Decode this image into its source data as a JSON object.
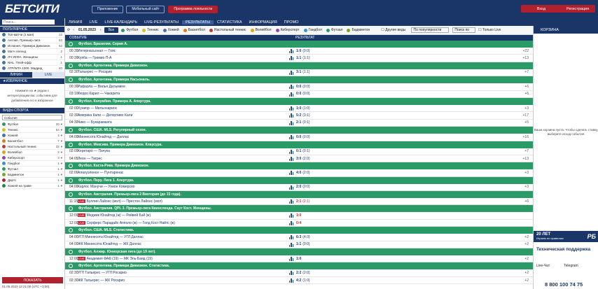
{
  "brand": "БЕТСИТИ",
  "header": {
    "app": "Приложение",
    "mobile": "Мобильный сайт",
    "loyalty": "Программа лояльности",
    "login": "Вход",
    "register": "Регистрация"
  },
  "nav": [
    "ЛИНИЯ",
    "LIVE",
    "LIVE-КАЛЕНДАРЬ",
    "LIVE-РЕЗУЛЬТАТЫ",
    "РЕЗУЛЬТАТЫ",
    "СТАТИСТИКА",
    "ИНФОРМАЦИЯ",
    "ПРОМО"
  ],
  "left": {
    "search_placeholder": "Поиск...",
    "popular_title": "ПОПУЛЯРНОЕ",
    "popular": [
      {
        "name": "Топ-матчи (1 мая)",
        "count": "22"
      },
      {
        "name": "Англия. Премьер-лига",
        "count": "63"
      },
      {
        "name": "Испания. Примера Дивизион",
        "count": "62"
      },
      {
        "name": "Матч легенд",
        "count": "2"
      },
      {
        "name": "ЛЧ УЕФА. Женщины",
        "count": "1"
      },
      {
        "name": "NHL. Плей-офф",
        "count": "1"
      },
      {
        "name": "ATP/WTA 1000. Мадрид",
        "count": "40"
      }
    ],
    "tab_line": "ЛИНИЯ",
    "tab_live": "LIVE",
    "fav_title": "ИЗБРАННОЕ",
    "fav_text": "Нажмите на ★ рядом с интересующим вас событием для добавления его в избранное",
    "sports_title": "ВИДЫ СПОРТА",
    "select": "События",
    "sports": [
      {
        "name": "Футбол",
        "count": "20",
        "color": "#2a9a66"
      },
      {
        "name": "Теннис",
        "count": "64",
        "color": "#d6c21a"
      },
      {
        "name": "Хоккей",
        "count": "4",
        "color": "#4a6fa5"
      },
      {
        "name": "Баскетбол",
        "count": "7",
        "color": "#e07a1a"
      },
      {
        "name": "Настольный теннис",
        "count": "32",
        "color": "#c0392b"
      },
      {
        "name": "Волейбол",
        "count": "2",
        "color": "#e0a21a"
      },
      {
        "name": "Киберспорт",
        "count": "3",
        "color": "#8e44ad"
      },
      {
        "name": "Гандбол",
        "count": "1",
        "color": "#3a8fd6"
      },
      {
        "name": "Футзал",
        "count": "1",
        "color": "#2a9a66"
      },
      {
        "name": "Бадминтон",
        "count": "1",
        "color": "#7aa81a"
      },
      {
        "name": "Дартс",
        "count": "1",
        "color": "#b0202e"
      },
      {
        "name": "Хоккей на траве",
        "count": "1",
        "color": "#1a8a4a"
      }
    ],
    "show_btn": "ПОКАЗАТЬ",
    "clock": "01.05.2023 12:21:00 (UTC +3:00)"
  },
  "filter": {
    "date": "01.05.2023",
    "all": "Все",
    "sports": [
      "Футбол",
      "Теннис",
      "Хоккей",
      "Баскетбол",
      "Настольный теннис",
      "Волейбол",
      "Киберспорт",
      "Гандбол",
      "Футзал",
      "Бадминтон"
    ],
    "other": "Другие виды",
    "sort": "По популярности",
    "search": "Поиск по",
    "live_only": "Только Live"
  },
  "cols": {
    "event": "СОБЫТИЕ",
    "result": "РЕЗУЛЬТАТ"
  },
  "rows": [
    {
      "g": "Футбол. Бразилия. Серия А."
    },
    {
      "t": "00:30",
      "m": "Интернасьонал — Гояс",
      "s": "1:0",
      "x": "(0:0)",
      "p": "+22"
    },
    {
      "t": "00:30",
      "m": "Куяба — Гремио П-А",
      "s": "1:1",
      "x": "(1:1)",
      "p": "+13"
    },
    {
      "g": "Футбол. Аргентина. Примера Дивизион."
    },
    {
      "t": "02:30",
      "m": "Тальерес — Росарио",
      "s": "3:1",
      "x": "(1:1)",
      "p": "+7"
    },
    {
      "g": "Футбол. Аргентина. Примера Насьональ."
    },
    {
      "t": "00:30",
      "m": "Рафаэла — Вилья Дальмине",
      "s": "0:0",
      "x": "(0:0)",
      "p": "+6"
    },
    {
      "t": "03:10",
      "m": "Ферро Карил — Чакарита",
      "s": "0:0",
      "x": "(0:0)",
      "p": "+6"
    },
    {
      "g": "Футбол. Колумбия. Примера А. Апертура."
    },
    {
      "t": "02:00",
      "m": "Хуниор — Мильонариос",
      "s": "1:0",
      "x": "(1:0)",
      "p": "+3"
    },
    {
      "t": "02:30",
      "m": "Америка Кали — Депортиво Кали",
      "s": "5:2",
      "x": "(3:1)",
      "p": "+17"
    },
    {
      "t": "04:30",
      "m": "Чико — Букараманга",
      "s": "2:1",
      "x": "(0:1)",
      "p": "+5"
    },
    {
      "g": "Футбол. США. MLS. Регулярный сезон."
    },
    {
      "t": "04:00",
      "m": "Миннесота Юнайтед — Даллас",
      "s": "0:0",
      "x": "(0:0)",
      "p": "+16"
    },
    {
      "g": "Футбол. Мексика. Примера Дивизион. Клаусура."
    },
    {
      "t": "02:00",
      "m": "Керетаро — Пачука",
      "s": "0:1",
      "x": "(0:1)",
      "p": "+7"
    },
    {
      "t": "04:05",
      "m": "Леон — Тигрес",
      "s": "3:0",
      "x": "(2:0)",
      "p": "+13"
    },
    {
      "g": "Футбол. Коста-Рика. Примера Дивизион."
    },
    {
      "t": "02:00",
      "m": "Алахуэленсе — Пунтаренас",
      "s": "4:0",
      "x": "(2:0)",
      "p": "+3"
    },
    {
      "g": "Футбол. Перу. Лига 1. Апертура."
    },
    {
      "t": "04:00",
      "m": "Карлос Манучи — Унион Комерсио",
      "s": "2:0",
      "x": "(0:0)",
      "p": "+3"
    },
    {
      "g": "Футбол. Австралия. Премьер-лига 2 Виктория (до 23 года)."
    },
    {
      "t": "11:15",
      "live": "1",
      "m": "Буллин Лайонс (мол) — Престон Лайонс (мол)",
      "s": "2:1",
      "x": "(2:1)",
      "red": "1",
      "p": "+6"
    },
    {
      "g": "Футбол. Австралия. QPL 3. Премьер-лига Квинсленда. Саут Кост. Женщины."
    },
    {
      "t": "12:00",
      "live": "1",
      "m": "Меджик Юнайтед (ж) — Рейвей Бэй (ж)",
      "s": "1:0",
      "red": "1",
      "p": ""
    },
    {
      "t": "12:00",
      "live": "1",
      "m": "Серферс Парадайс Апполо (ж) — Голд Кост Найтс (ж)",
      "s": "0:4",
      "red": "1",
      "p": ""
    },
    {
      "g": "Футбол. США. MLS. Статистика."
    },
    {
      "t": "04:00",
      "m": "УГЛ Миннесота Юнайтед — УГЛ Даллас",
      "s": "6:3",
      "x": "(4:3)",
      "p": "+2"
    },
    {
      "t": "04:00",
      "m": "ЖК Миннесота Юнайтед — ЖК Даллас",
      "s": "1:1",
      "x": "(0:0)",
      "p": "+2"
    },
    {
      "g": "Футбол. Алжир. Юниорская лига (до 19 лет)."
    },
    {
      "t": "12:00",
      "live": "1",
      "m": "Академия ФАФ (19) — МК Эль-Баяд (19)",
      "s": "1:0",
      "p": "+2"
    },
    {
      "g": "Футбол. Аргентина. Примера Дивизион. Статистика."
    },
    {
      "t": "02:30",
      "m": "УГЛ Тальерес — УГЛ Росарио",
      "s": "2:2",
      "x": "(2:0)",
      "p": "+2"
    },
    {
      "t": "02:30",
      "m": "ЖК Тальерес — ЖК Росарио",
      "s": "4:2",
      "x": "(1:0)",
      "p": "+2"
    }
  ],
  "right": {
    "title": "КОРЗИНА",
    "cart_msg": "Ваша корзина пуста. Чтобы сделать ставку, выберите исход события.",
    "promo_big": "20 ЛЕТ",
    "promo_small": "Играем по правилам",
    "promo_logo": "РБ",
    "support": "Техническая поддержка",
    "chat": "Live-Чат",
    "telegram": "Telegram",
    "phone": "8 800 100 74 75"
  }
}
